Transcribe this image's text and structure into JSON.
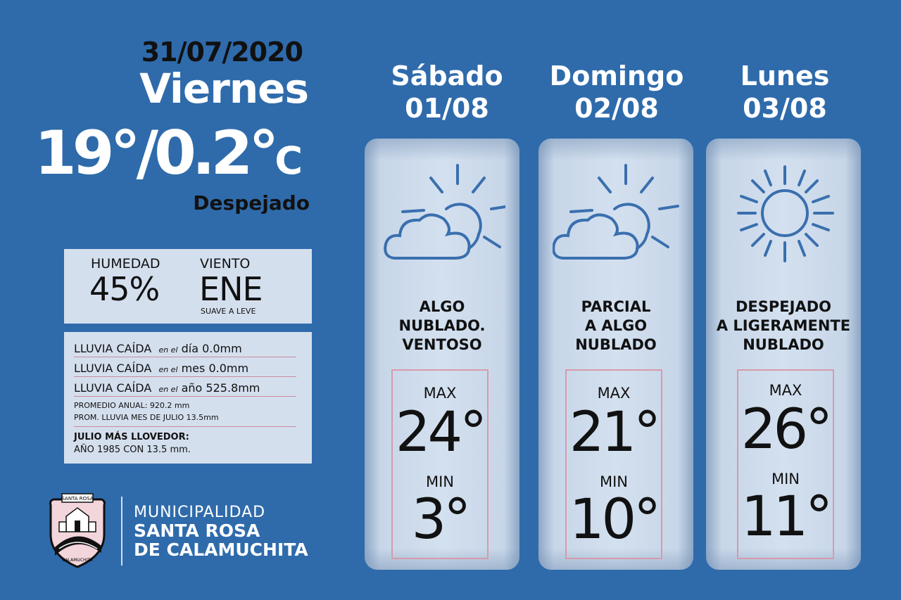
{
  "current": {
    "date": "31/07/2020",
    "day": "Viernes",
    "temps": "19°/0.2°",
    "unit": "C",
    "condition": "Despejado"
  },
  "conditions": {
    "humidity_label": "HUMEDAD",
    "humidity_value": "45%",
    "wind_label": "VIENTO",
    "wind_value": "ENE",
    "wind_desc": "SUAVE A LEVE"
  },
  "rain": {
    "day": {
      "label": "LLUVIA CAÍDA",
      "qual": "en el",
      "text": "día 0.0mm"
    },
    "month": {
      "label": "LLUVIA CAÍDA",
      "qual": "en el",
      "text": "mes 0.0mm"
    },
    "year": {
      "label": "LLUVIA CAÍDA",
      "qual": "en el",
      "text": "año 525.8mm"
    },
    "annual_avg": "PROMEDIO ANUAL: 920.2 mm",
    "month_avg": "PROM. LLUVIA MES DE JULIO 13.5mm",
    "rainiest_title": "JULIO MÁS LLOVEDOR:",
    "rainiest_text": "AÑO 1985 CON 13.5 mm."
  },
  "branding": {
    "line1": "MUNICIPALIDAD",
    "line2": "SANTA ROSA",
    "line3": "DE CALAMUCHITA",
    "seal_top": "SANTA ROSA",
    "seal_bottom": "CALAMUCHITA"
  },
  "forecast": [
    {
      "day": "Sábado",
      "date": "01/08",
      "icon": "partly-cloudy-icon",
      "cond": [
        "ALGO",
        "NUBLADO.",
        "VENTOSO"
      ],
      "max_label": "MAX",
      "max": "24°",
      "min_label": "MIN",
      "min": "3°"
    },
    {
      "day": "Domingo",
      "date": "02/08",
      "icon": "partly-cloudy-icon",
      "cond": [
        "PARCIAL",
        "A ALGO",
        "NUBLADO"
      ],
      "max_label": "MAX",
      "max": "21°",
      "min_label": "MIN",
      "min": "10°"
    },
    {
      "day": "Lunes",
      "date": "03/08",
      "icon": "sun-icon",
      "cond": [
        "DESPEJADO",
        "A LIGERAMENTE",
        "NUBLADO"
      ],
      "max_label": "MAX",
      "max": "26°",
      "min_label": "MIN",
      "min": "11°"
    }
  ],
  "colors": {
    "background": "#2f6bab",
    "panel": "#d4dfee",
    "icon_stroke": "#3a6fae",
    "box_border": "#d79aaa"
  }
}
